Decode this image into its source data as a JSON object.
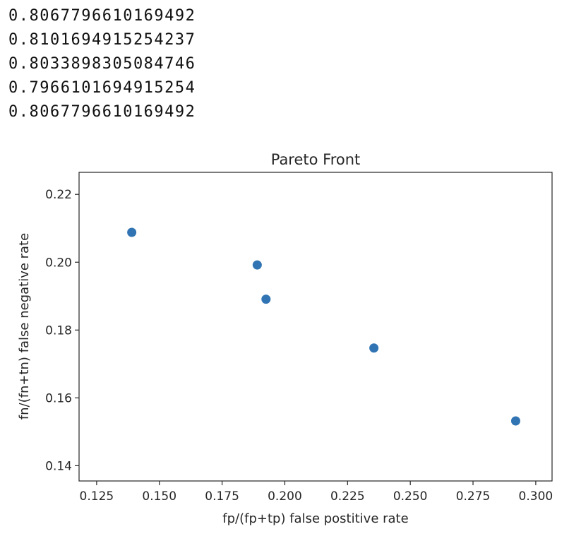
{
  "output": {
    "lines": [
      "0.8067796610169492",
      "0.8101694915254237",
      "0.8033898305084746",
      "0.7966101694915254",
      "0.8067796610169492"
    ]
  },
  "chart_data": {
    "type": "scatter",
    "title": "Pareto Front",
    "xlabel": "fp/(fp+tp) false postitive rate",
    "ylabel": "fn/(fn+tn) false negative rate",
    "xlim": [
      0.118,
      0.3065
    ],
    "ylim": [
      0.1355,
      0.2265
    ],
    "xticks": [
      "0.125",
      "0.150",
      "0.175",
      "0.200",
      "0.225",
      "0.250",
      "0.275",
      "0.300"
    ],
    "yticks": [
      "0.14",
      "0.16",
      "0.18",
      "0.20",
      "0.22"
    ],
    "grid": false,
    "point_color": "#3174b3",
    "points": [
      {
        "x": 0.139,
        "y": 0.2088
      },
      {
        "x": 0.189,
        "y": 0.1992
      },
      {
        "x": 0.1925,
        "y": 0.1891
      },
      {
        "x": 0.2355,
        "y": 0.1747
      },
      {
        "x": 0.292,
        "y": 0.1532
      }
    ]
  }
}
